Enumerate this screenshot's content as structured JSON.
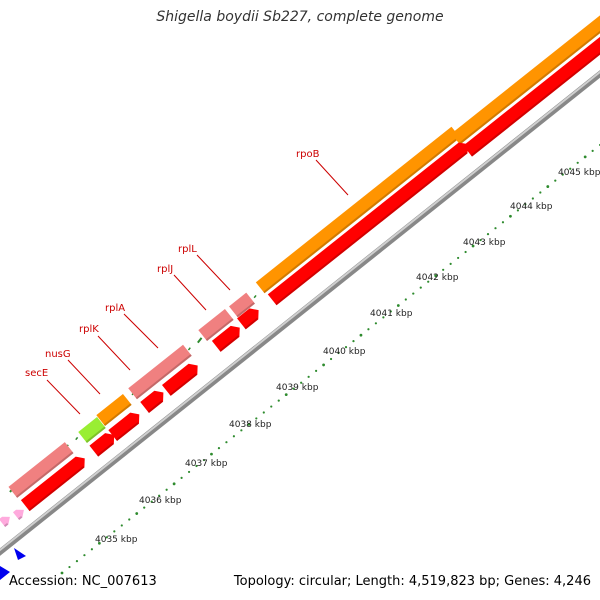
{
  "title": "Shigella boydii Sb227, complete genome",
  "accession": "Accession: NC_007613",
  "topology": "Topology: circular; Length: 4,519,823 bp; Genes: 4,246",
  "colors": {
    "backbone": "#9a9a9a",
    "tick_major": "#2e8b2e",
    "tick_minor": "#2e8b2e",
    "gene_orange": "#ff9400",
    "gene_red": "#ff0000",
    "gene_pink": "#f08080",
    "gene_green": "#99ee33",
    "gene_blue": "#0000ee",
    "gene_lightpink": "#ffaadd",
    "label": "#cc0000"
  },
  "scale_labels": [
    "4035 kbp",
    "4036 kbp",
    "4037 kbp",
    "4038 kbp",
    "4039 kbp",
    "4040 kbp",
    "4041 kbp",
    "4042 kbp",
    "4043 kbp",
    "4044 kbp",
    "4045 kbp"
  ],
  "gene_labels": [
    "secE",
    "nusG",
    "rplK",
    "rplA",
    "rplJ",
    "rplL",
    "rpoB"
  ]
}
